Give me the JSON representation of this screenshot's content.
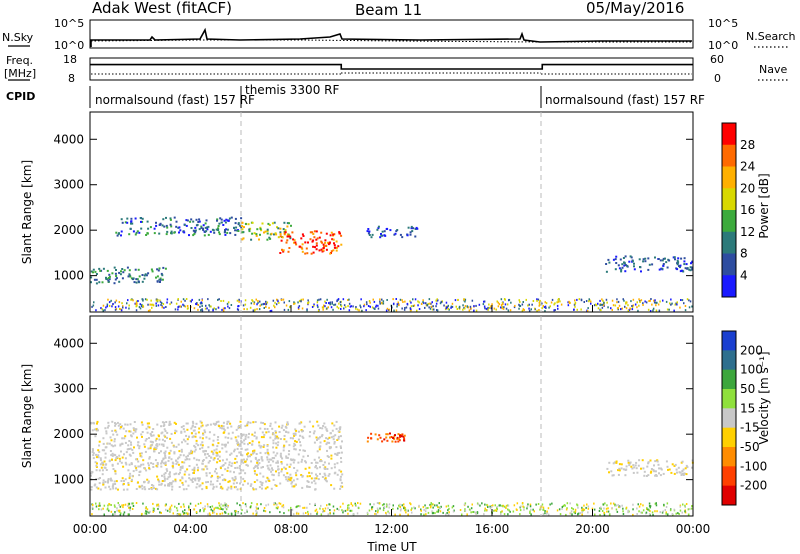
{
  "header": {
    "station": "Adak West (fitACF)",
    "beam": "Beam 11",
    "date": "05/May/2016"
  },
  "noise_panel": {
    "left_label": "N.Sky",
    "right_label": "N.Search",
    "ticks_left": [
      "10^5",
      "10^0"
    ],
    "ticks_right": [
      "10^5",
      "10^0"
    ]
  },
  "freq_panel": {
    "left_label_1": "Freq.",
    "left_label_2": "[MHz]",
    "right_label": "Nave",
    "ticks_left": [
      "18",
      "8"
    ],
    "ticks_right": [
      "60",
      "0"
    ]
  },
  "cpid": {
    "label": "CPID",
    "segments": [
      {
        "text": "normalsound (fast) 157 RF",
        "start": 0,
        "end": 6
      },
      {
        "text": "themis 3300 RF",
        "start": 6,
        "end": 18
      },
      {
        "text": "normalsound (fast) 157 RF",
        "start": 18,
        "end": 24
      }
    ]
  },
  "power_panel": {
    "ylabel": "Slant Range [km]",
    "cbar_label": "Power [dB]",
    "cbar_ticks": [
      "28",
      "24",
      "20",
      "16",
      "12",
      "8",
      "4"
    ],
    "cbar_colors": [
      "#ff0000",
      "#ff6a00",
      "#ffb000",
      "#d8d800",
      "#3caa3c",
      "#2c7a7a",
      "#2e4da0",
      "#1a1aff"
    ]
  },
  "velocity_panel": {
    "ylabel": "Slant Range [km]",
    "cbar_label": "Velocity [m s⁻¹]",
    "cbar_ticks": [
      "200",
      "100",
      "50",
      "15",
      "-15",
      "-50",
      "-100",
      "-200"
    ],
    "cbar_colors": [
      "#1a3fcf",
      "#2e6f8e",
      "#3ca63c",
      "#8fe03c",
      "#c8c8c8",
      "#ffd000",
      "#ff8c00",
      "#ff4000",
      "#e00000"
    ]
  },
  "time_axis": {
    "xlabel": "Time UT",
    "ticks": [
      "00:00",
      "04:00",
      "08:00",
      "12:00",
      "16:00",
      "20:00",
      "00:00"
    ]
  },
  "chart_data": {
    "type": "heatmap",
    "title": "Adak West (fitACF)  Beam 11  05/May/2016",
    "xlabel": "Time UT",
    "xlim": [
      0,
      24
    ],
    "ylabel": "Slant Range [km]",
    "ylim": [
      200,
      4600
    ],
    "yticks": [
      1000,
      2000,
      3000,
      4000
    ],
    "frequency_mhz": [
      {
        "start": 0,
        "end": 10,
        "value": 15
      },
      {
        "start": 10,
        "end": 18,
        "value": 13
      },
      {
        "start": 18,
        "end": 24,
        "value": 15
      }
    ],
    "power_regions": [
      {
        "t0": 0.0,
        "t1": 3.0,
        "r0": 850,
        "r1": 1200,
        "level": "8-12 dB"
      },
      {
        "t0": 1.0,
        "t1": 6.0,
        "r0": 1900,
        "r1": 2300,
        "level": "4-12 dB"
      },
      {
        "t0": 6.0,
        "t1": 8.0,
        "r0": 1800,
        "r1": 2200,
        "level": "12-20 dB"
      },
      {
        "t0": 7.5,
        "t1": 10.0,
        "r0": 1500,
        "r1": 2000,
        "level": "20-30 dB"
      },
      {
        "t0": 11.0,
        "t1": 13.0,
        "r0": 1850,
        "r1": 2100,
        "level": "4-8 dB"
      },
      {
        "t0": 20.5,
        "t1": 24.0,
        "r0": 1100,
        "r1": 1450,
        "level": "4-8 dB"
      }
    ],
    "velocity_regions": [
      {
        "t0": 0.0,
        "t1": 10.0,
        "r0": 800,
        "r1": 2300,
        "level": "-15 to 15 m/s"
      },
      {
        "t0": 11.0,
        "t1": 12.5,
        "r0": 1850,
        "r1": 2050,
        "level": "-200 to -100 m/s"
      },
      {
        "t0": 20.5,
        "t1": 24.0,
        "r0": 1100,
        "r1": 1450,
        "level": "-15 to 15 m/s"
      }
    ]
  }
}
